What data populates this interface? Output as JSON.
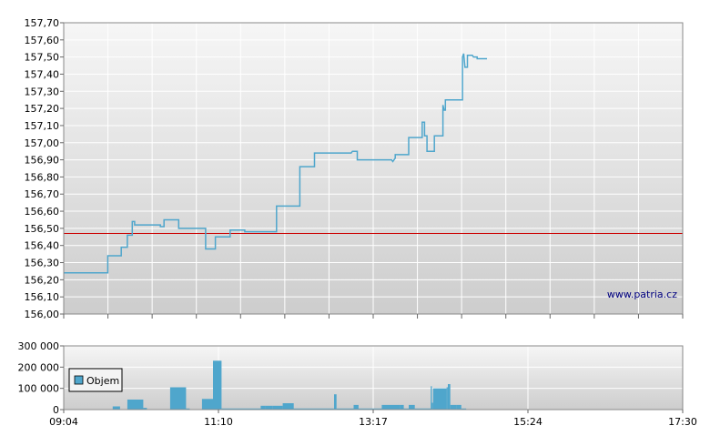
{
  "watermark": "www.patria.cz",
  "chart_data": [
    {
      "type": "line",
      "title": "",
      "xlabel": "",
      "ylabel": "",
      "ylim": [
        156.0,
        157.7
      ],
      "y_ticks": [
        "157,70",
        "157,60",
        "157,50",
        "157,40",
        "157,30",
        "157,20",
        "157,10",
        "157,00",
        "156,90",
        "156,80",
        "156,70",
        "156,60",
        "156,50",
        "156,40",
        "156,30",
        "156,20",
        "156,10",
        "156,00"
      ],
      "reference_value": 156.47,
      "reference_color": "#cc0000",
      "line_color": "#4fa6cc",
      "grid": true,
      "x_start": "09:04",
      "x_end": "17:30",
      "series": [
        {
          "values": [
            [
              "09:04",
              156.24
            ],
            [
              "09:40",
              156.24
            ],
            [
              "09:40",
              156.34
            ],
            [
              "09:51",
              156.34
            ],
            [
              "09:51",
              156.39
            ],
            [
              "09:56",
              156.39
            ],
            [
              "09:56",
              156.46
            ],
            [
              "10:00",
              156.46
            ],
            [
              "10:00",
              156.54
            ],
            [
              "10:02",
              156.54
            ],
            [
              "10:02",
              156.52
            ],
            [
              "10:23",
              156.52
            ],
            [
              "10:23",
              156.51
            ],
            [
              "10:26",
              156.51
            ],
            [
              "10:26",
              156.55
            ],
            [
              "10:38",
              156.55
            ],
            [
              "10:38",
              156.5
            ],
            [
              "10:53",
              156.5
            ],
            [
              "11:00",
              156.5
            ],
            [
              "11:00",
              156.38
            ],
            [
              "11:08",
              156.38
            ],
            [
              "11:08",
              156.45
            ],
            [
              "11:20",
              156.45
            ],
            [
              "11:20",
              156.49
            ],
            [
              "11:32",
              156.49
            ],
            [
              "11:32",
              156.48
            ],
            [
              "11:58",
              156.48
            ],
            [
              "11:58",
              156.63
            ],
            [
              "12:17",
              156.63
            ],
            [
              "12:17",
              156.86
            ],
            [
              "12:29",
              156.86
            ],
            [
              "12:29",
              156.94
            ],
            [
              "12:59",
              156.94
            ],
            [
              "13:00",
              156.95
            ],
            [
              "13:04",
              156.95
            ],
            [
              "13:04",
              156.9
            ],
            [
              "13:32",
              156.9
            ],
            [
              "13:33",
              156.89
            ],
            [
              "13:35",
              156.91
            ],
            [
              "13:35",
              156.93
            ],
            [
              "13:46",
              156.93
            ],
            [
              "13:46",
              157.03
            ],
            [
              "13:57",
              157.03
            ],
            [
              "13:57",
              157.12
            ],
            [
              "13:59",
              157.12
            ],
            [
              "13:59",
              157.04
            ],
            [
              "14:01",
              157.04
            ],
            [
              "14:01",
              156.95
            ],
            [
              "14:07",
              156.95
            ],
            [
              "14:07",
              157.04
            ],
            [
              "14:14",
              157.04
            ],
            [
              "14:14",
              157.22
            ],
            [
              "14:15",
              157.19
            ],
            [
              "14:16",
              157.19
            ],
            [
              "14:16",
              157.25
            ],
            [
              "14:30",
              157.25
            ],
            [
              "14:30",
              157.5
            ],
            [
              "14:31",
              157.52
            ],
            [
              "14:32",
              157.44
            ],
            [
              "14:34",
              157.44
            ],
            [
              "14:34",
              157.51
            ],
            [
              "14:38",
              157.51
            ],
            [
              "14:39",
              157.5
            ],
            [
              "14:42",
              157.5
            ],
            [
              "14:42",
              157.49
            ],
            [
              "14:50",
              157.49
            ]
          ]
        }
      ]
    },
    {
      "type": "bar",
      "title": "",
      "xlabel": "",
      "ylabel": "",
      "ylim": [
        0,
        300000
      ],
      "y_ticks": [
        "300 000",
        "200 000",
        "100 000",
        "0"
      ],
      "x_ticks": [
        "09:04",
        "11:10",
        "13:17",
        "15:24",
        "17:30"
      ],
      "bar_color": "#4fa6cc",
      "legend": {
        "label": "Objem",
        "placement": "top-left"
      },
      "series": [
        {
          "name": "Objem",
          "values": [
            [
              "09:44",
              "09:50",
              15000
            ],
            [
              "09:56",
              "10:09",
              47000
            ],
            [
              "10:09",
              "10:12",
              8000
            ],
            [
              "10:31",
              "10:44",
              105000
            ],
            [
              "10:44",
              "10:47",
              5000
            ],
            [
              "10:57",
              "11:06",
              50000
            ],
            [
              "11:06",
              "11:13",
              230000
            ],
            [
              "11:13",
              "11:45",
              5000
            ],
            [
              "11:45",
              "11:49",
              18000
            ],
            [
              "11:49",
              "11:55",
              18000
            ],
            [
              "11:55",
              "12:03",
              18000
            ],
            [
              "12:03",
              "12:12",
              30000
            ],
            [
              "12:12",
              "12:45",
              5000
            ],
            [
              "12:45",
              "12:47",
              72000
            ],
            [
              "12:47",
              "13:01",
              5000
            ],
            [
              "13:01",
              "13:05",
              22000
            ],
            [
              "13:05",
              "13:24",
              5000
            ],
            [
              "13:24",
              "13:30",
              22000
            ],
            [
              "13:30",
              "13:39",
              22000
            ],
            [
              "13:39",
              "13:42",
              22000
            ],
            [
              "13:42",
              "13:46",
              5000
            ],
            [
              "13:46",
              "13:51",
              22000
            ],
            [
              "13:51",
              "14:04",
              5000
            ],
            [
              "14:04",
              "14:05",
              110000
            ],
            [
              "14:05",
              "14:06",
              32000
            ],
            [
              "14:06",
              "14:17",
              100000
            ],
            [
              "14:17",
              "14:18",
              105000
            ],
            [
              "14:18",
              "14:20",
              120000
            ],
            [
              "14:20",
              "14:25",
              22000
            ],
            [
              "14:25",
              "14:29",
              22000
            ],
            [
              "14:29",
              "14:33",
              5000
            ]
          ]
        }
      ]
    }
  ]
}
